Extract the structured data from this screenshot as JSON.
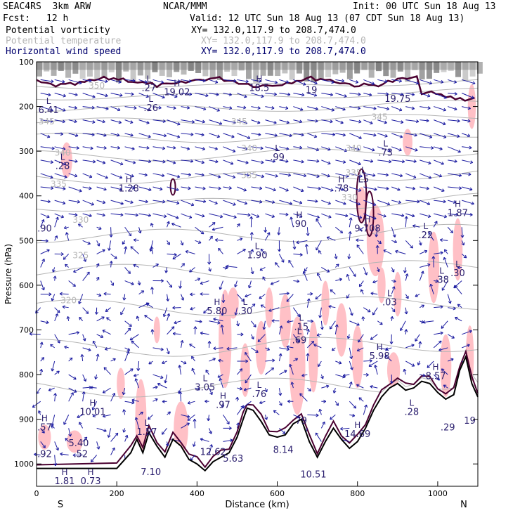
{
  "header": {
    "model": "SEAC4RS  3km ARW",
    "org": "NCAR/MMM",
    "init": "Init: 00 UTC Sun 18 Aug 13",
    "fcst_label": "Fcst:",
    "fcst_value": "12 h",
    "valid": "Valid: 12 UTC Sun 18 Aug 13 (07 CDT Sun 18 Aug 13)",
    "fields": [
      {
        "name": "Potential vorticity",
        "xy": "XY= 132.0,117.9 to 208.7,474.0",
        "color": "#000000"
      },
      {
        "name": "Potential temperature",
        "xy": "XY= 132.0,117.9 to 208.7,474.0",
        "color": "#b5b5b5"
      },
      {
        "name": "Horizontal wind speed",
        "xy": "XY= 132.0,117.9 to 208.7,474.0",
        "color": "#00006e"
      }
    ]
  },
  "chart_data": {
    "type": "cross-section",
    "xlabel": "Distance (km)",
    "ylabel": "Pressure (hPa)",
    "xlim": [
      0,
      1100
    ],
    "ylim": [
      1050,
      100
    ],
    "x_ticks": [
      0,
      200,
      400,
      600,
      800,
      1000
    ],
    "y_ticks": [
      100,
      200,
      300,
      400,
      500,
      600,
      700,
      800,
      900,
      1000
    ],
    "left_end_label": "S",
    "right_end_label": "N",
    "theta_labels": [
      {
        "x": 150,
        "p": 160,
        "text": "350"
      },
      {
        "x": 25,
        "p": 240,
        "text": "345"
      },
      {
        "x": 505,
        "p": 240,
        "text": "345"
      },
      {
        "x": 855,
        "p": 230,
        "text": "345"
      },
      {
        "x": 65,
        "p": 310,
        "text": "340"
      },
      {
        "x": 530,
        "p": 300,
        "text": "340"
      },
      {
        "x": 790,
        "p": 300,
        "text": "340"
      },
      {
        "x": 55,
        "p": 380,
        "text": "335"
      },
      {
        "x": 530,
        "p": 360,
        "text": "335"
      },
      {
        "x": 790,
        "p": 355,
        "text": "335"
      },
      {
        "x": 110,
        "p": 460,
        "text": "330"
      },
      {
        "x": 780,
        "p": 410,
        "text": "330"
      },
      {
        "x": 110,
        "p": 540,
        "text": "325"
      },
      {
        "x": 80,
        "p": 640,
        "text": "320"
      }
    ],
    "pv_extrema": [
      {
        "x": 30,
        "p": 215,
        "kind": "L",
        "value": "6.41"
      },
      {
        "x": 280,
        "p": 165,
        "kind": "L",
        "value": ".27"
      },
      {
        "x": 350,
        "p": 175,
        "kind": "H",
        "value": "19.02"
      },
      {
        "x": 285,
        "p": 210,
        "kind": "L",
        "value": ".26"
      },
      {
        "x": 555,
        "p": 165,
        "kind": "H",
        "value": "18.5"
      },
      {
        "x": 685,
        "p": 170,
        "kind": "",
        "value": "19"
      },
      {
        "x": 900,
        "p": 190,
        "kind": "",
        "value": "19.75"
      },
      {
        "x": 65,
        "p": 340,
        "kind": "L",
        "value": ".28"
      },
      {
        "x": 600,
        "p": 320,
        "kind": "L",
        "value": ".99"
      },
      {
        "x": 870,
        "p": 310,
        "kind": "L",
        "value": ".73"
      },
      {
        "x": 230,
        "p": 390,
        "kind": "H",
        "value": "1.28"
      },
      {
        "x": 760,
        "p": 390,
        "kind": "H",
        "value": ".78"
      },
      {
        "x": 815,
        "p": 370,
        "kind": "L",
        "value": "L5"
      },
      {
        "x": 20,
        "p": 480,
        "kind": "",
        "value": ".90"
      },
      {
        "x": 655,
        "p": 470,
        "kind": "H",
        "value": ".90"
      },
      {
        "x": 825,
        "p": 480,
        "kind": "H",
        "value": "9.708"
      },
      {
        "x": 970,
        "p": 495,
        "kind": "L",
        "value": ".22"
      },
      {
        "x": 1050,
        "p": 445,
        "kind": "H",
        "value": "1.87"
      },
      {
        "x": 550,
        "p": 540,
        "kind": "L",
        "value": "1.90"
      },
      {
        "x": 1010,
        "p": 595,
        "kind": "L",
        "value": ".38"
      },
      {
        "x": 1050,
        "p": 580,
        "kind": "L",
        "value": ".30"
      },
      {
        "x": 880,
        "p": 645,
        "kind": "L",
        "value": ".03"
      },
      {
        "x": 450,
        "p": 665,
        "kind": "H",
        "value": "5.80"
      },
      {
        "x": 520,
        "p": 665,
        "kind": "L",
        "value": ".30"
      },
      {
        "x": 660,
        "p": 700,
        "kind": "L",
        "value": ".15"
      },
      {
        "x": 655,
        "p": 730,
        "kind": "L",
        "value": ".69"
      },
      {
        "x": 855,
        "p": 765,
        "kind": "H",
        "value": "5.98"
      },
      {
        "x": 995,
        "p": 810,
        "kind": "H",
        "value": "8.57"
      },
      {
        "x": 420,
        "p": 835,
        "kind": "L",
        "value": "3.05"
      },
      {
        "x": 555,
        "p": 850,
        "kind": "L",
        "value": ".76"
      },
      {
        "x": 465,
        "p": 875,
        "kind": "H",
        "value": ".97"
      },
      {
        "x": 140,
        "p": 890,
        "kind": "H",
        "value": "10.01"
      },
      {
        "x": 20,
        "p": 925,
        "kind": "H",
        "value": ".57"
      },
      {
        "x": 935,
        "p": 890,
        "kind": "L",
        "value": ".28"
      },
      {
        "x": 1025,
        "p": 925,
        "kind": "",
        "value": ".29"
      },
      {
        "x": 1080,
        "p": 910,
        "kind": "",
        "value": "19"
      },
      {
        "x": 275,
        "p": 935,
        "kind": "L",
        "value": "1.57"
      },
      {
        "x": 660,
        "p": 910,
        "kind": "",
        "value": "79"
      },
      {
        "x": 800,
        "p": 940,
        "kind": "H",
        "value": "14.69"
      },
      {
        "x": 105,
        "p": 960,
        "kind": "",
        "value": "5.40"
      },
      {
        "x": 110,
        "p": 985,
        "kind": "",
        "value": ".52"
      },
      {
        "x": 20,
        "p": 985,
        "kind": "",
        "value": ".92"
      },
      {
        "x": 440,
        "p": 980,
        "kind": "",
        "value": "12.62"
      },
      {
        "x": 490,
        "p": 995,
        "kind": "",
        "value": "5.63"
      },
      {
        "x": 615,
        "p": 975,
        "kind": "",
        "value": "8.14"
      },
      {
        "x": 690,
        "p": 1030,
        "kind": "",
        "value": "10.51"
      },
      {
        "x": 285,
        "p": 1025,
        "kind": "",
        "value": "7.10"
      },
      {
        "x": 70,
        "p": 1045,
        "kind": "H",
        "value": "1.81"
      },
      {
        "x": 135,
        "p": 1045,
        "kind": "H",
        "value": "0.73"
      }
    ],
    "terrain_pressure": [
      [
        0,
        1010
      ],
      [
        200,
        1010
      ],
      [
        235,
        975
      ],
      [
        250,
        945
      ],
      [
        265,
        975
      ],
      [
        280,
        930
      ],
      [
        300,
        960
      ],
      [
        320,
        985
      ],
      [
        340,
        945
      ],
      [
        360,
        960
      ],
      [
        380,
        990
      ],
      [
        400,
        1000
      ],
      [
        420,
        1015
      ],
      [
        440,
        995
      ],
      [
        460,
        985
      ],
      [
        480,
        975
      ],
      [
        500,
        940
      ],
      [
        515,
        900
      ],
      [
        525,
        875
      ],
      [
        540,
        880
      ],
      [
        560,
        905
      ],
      [
        580,
        935
      ],
      [
        600,
        940
      ],
      [
        620,
        935
      ],
      [
        640,
        910
      ],
      [
        660,
        900
      ],
      [
        680,
        950
      ],
      [
        700,
        985
      ],
      [
        720,
        950
      ],
      [
        740,
        920
      ],
      [
        760,
        945
      ],
      [
        780,
        965
      ],
      [
        800,
        950
      ],
      [
        820,
        920
      ],
      [
        840,
        880
      ],
      [
        860,
        850
      ],
      [
        880,
        830
      ],
      [
        900,
        820
      ],
      [
        920,
        835
      ],
      [
        940,
        830
      ],
      [
        960,
        815
      ],
      [
        980,
        820
      ],
      [
        1000,
        840
      ],
      [
        1020,
        855
      ],
      [
        1040,
        845
      ],
      [
        1055,
        790
      ],
      [
        1070,
        760
      ],
      [
        1085,
        820
      ],
      [
        1100,
        850
      ]
    ]
  }
}
